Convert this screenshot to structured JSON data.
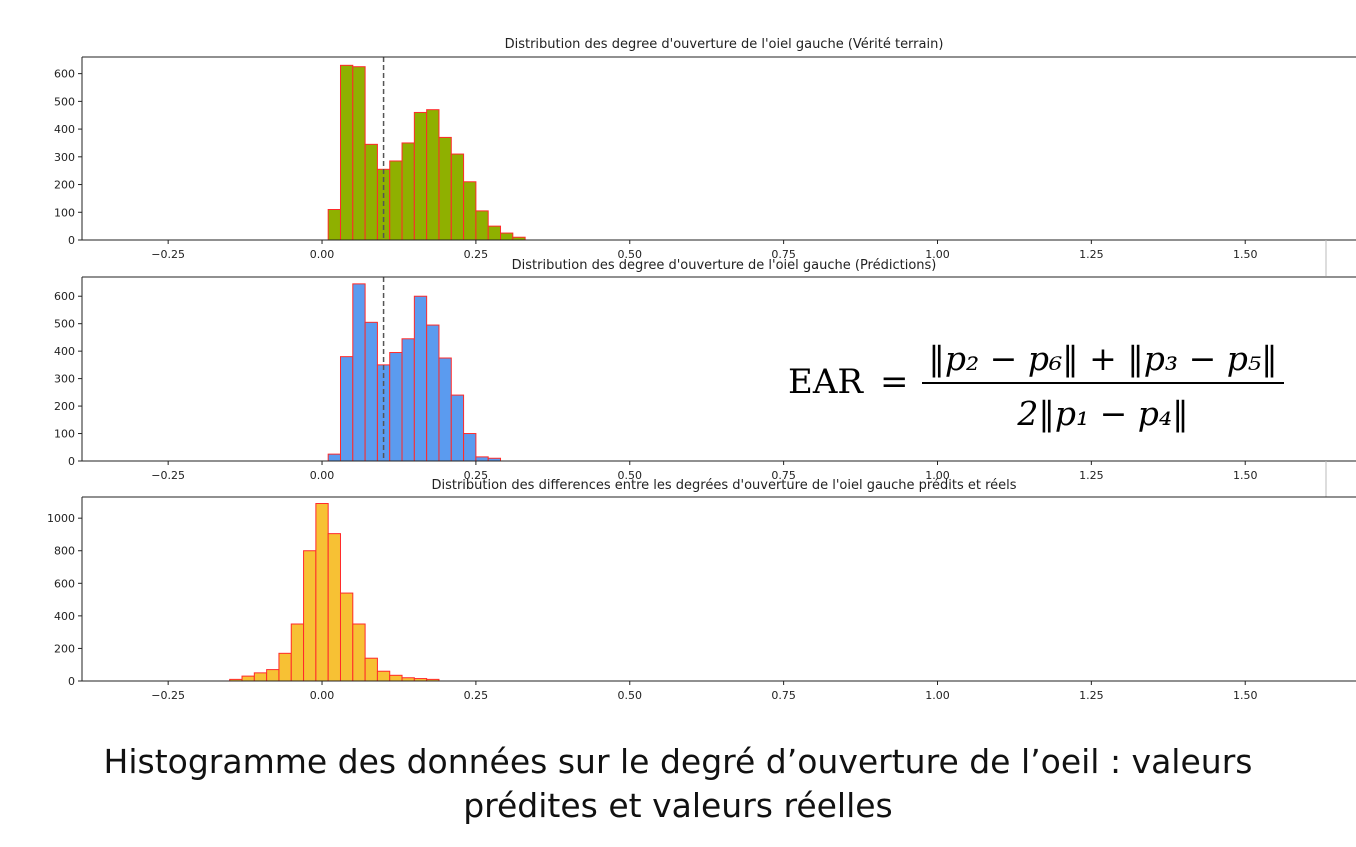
{
  "chart_data": [
    {
      "type": "bar",
      "title": "Distribution des degree d'ouverture de l'oiel gauche (Vérité terrain)",
      "x_ticks": [
        "−0.25",
        "0.00",
        "0.25",
        "0.50",
        "0.75",
        "1.00",
        "1.25",
        "1.50"
      ],
      "x_tick_values": [
        -0.25,
        0,
        0.25,
        0.5,
        0.75,
        1.0,
        1.25,
        1.5
      ],
      "y_ticks": [
        "0",
        "100",
        "200",
        "300",
        "400",
        "500",
        "600"
      ],
      "y_tick_values": [
        0,
        100,
        200,
        300,
        400,
        500,
        600
      ],
      "xlim": [
        -0.39,
        1.68
      ],
      "ylim": [
        0,
        660
      ],
      "bin_start": 0.01,
      "bin_width": 0.02,
      "values": [
        110,
        630,
        625,
        345,
        255,
        285,
        350,
        460,
        470,
        370,
        310,
        210,
        105,
        50,
        25,
        10
      ],
      "bar_color": "#8fb000",
      "edge_color": "#ff2a2a",
      "vline_x": 0.1,
      "grid": false
    },
    {
      "type": "bar",
      "title": "Distribution des degree d'ouverture de l'oiel gauche (Prédictions)",
      "x_ticks": [
        "−0.25",
        "0.00",
        "0.25",
        "0.50",
        "0.75",
        "1.00",
        "1.25",
        "1.50"
      ],
      "x_tick_values": [
        -0.25,
        0,
        0.25,
        0.5,
        0.75,
        1.0,
        1.25,
        1.5
      ],
      "y_ticks": [
        "0",
        "100",
        "200",
        "300",
        "400",
        "500",
        "600"
      ],
      "y_tick_values": [
        0,
        100,
        200,
        300,
        400,
        500,
        600
      ],
      "xlim": [
        -0.39,
        1.68
      ],
      "ylim": [
        0,
        670
      ],
      "bin_start": 0.01,
      "bin_width": 0.02,
      "values": [
        25,
        380,
        645,
        505,
        350,
        395,
        445,
        600,
        495,
        375,
        240,
        100,
        15,
        10
      ],
      "bar_color": "#5b9bef",
      "edge_color": "#ff2a2a",
      "vline_x": 0.1,
      "grid": false,
      "formula": {
        "lhs": "EAR",
        "equals": "=",
        "numerator": "‖p₂ − p₆‖ + ‖p₃ − p₅‖",
        "denominator": "2‖p₁ − p₄‖"
      }
    },
    {
      "type": "bar",
      "title": "Distribution des differences entre les degrées d'ouverture de l'oiel gauche prédits et réels",
      "x_ticks": [
        "−0.25",
        "0.00",
        "0.25",
        "0.50",
        "0.75",
        "1.00",
        "1.25",
        "1.50"
      ],
      "x_tick_values": [
        -0.25,
        0,
        0.25,
        0.5,
        0.75,
        1.0,
        1.25,
        1.5
      ],
      "y_ticks": [
        "0",
        "200",
        "400",
        "600",
        "800",
        "1000"
      ],
      "y_tick_values": [
        0,
        200,
        400,
        600,
        800,
        1000
      ],
      "xlim": [
        -0.39,
        1.68
      ],
      "ylim": [
        0,
        1130
      ],
      "bin_start": -0.15,
      "bin_width": 0.02,
      "values": [
        10,
        30,
        50,
        70,
        170,
        350,
        800,
        1090,
        905,
        540,
        350,
        140,
        60,
        35,
        20,
        15,
        10
      ],
      "bar_color": "#f7c134",
      "edge_color": "#ff2a2a",
      "grid": false
    }
  ],
  "caption": {
    "line1": "Histogramme des données sur le degré d’ouverture de l’oeil : valeurs",
    "line2": "prédites et valeurs réelles"
  }
}
